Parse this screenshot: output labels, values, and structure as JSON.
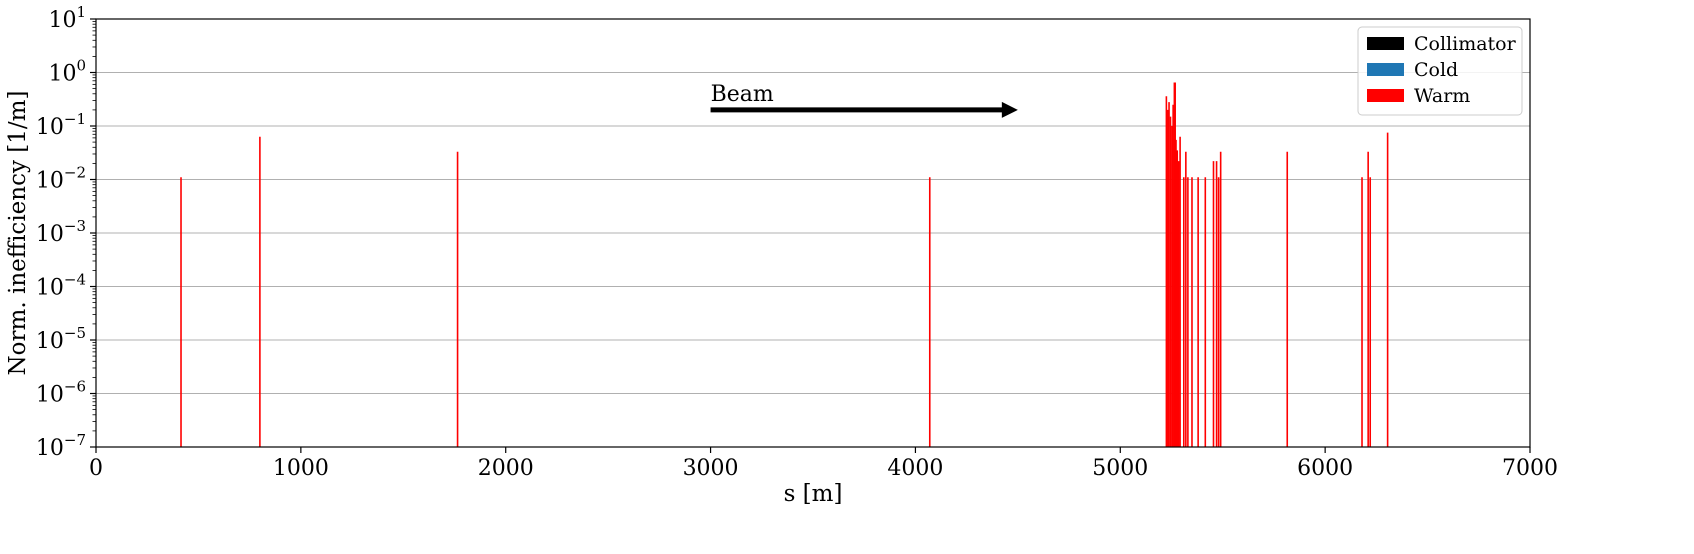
{
  "chart_data": {
    "type": "bar",
    "xlabel": "s [m]",
    "ylabel": "Norm. inefficiency [1/m]",
    "xlim": [
      0,
      7000
    ],
    "ylim": [
      1e-07,
      10
    ],
    "yscale": "log",
    "x_ticks": [
      0,
      1000,
      2000,
      3000,
      4000,
      5000,
      6000,
      7000
    ],
    "y_tick_exponents": [
      -7,
      -6,
      -5,
      -4,
      -3,
      -2,
      -1,
      0,
      1
    ],
    "y_tick_base": "10",
    "grid": "horizontal",
    "legend_position": "top-right",
    "legend": [
      {
        "label": "Collimator",
        "color": "#000000"
      },
      {
        "label": "Cold",
        "color": "#1f77b4"
      },
      {
        "label": "Warm",
        "color": "#ff0000"
      }
    ],
    "annotation": {
      "text": "Beam",
      "arrow_from": [
        3000,
        0.2
      ],
      "arrow_to": [
        4500,
        0.2
      ]
    },
    "series": [
      {
        "name": "Warm",
        "color": "#ff0000",
        "points": [
          {
            "s": 415,
            "value": 0.011
          },
          {
            "s": 800,
            "value": 0.063
          },
          {
            "s": 1765,
            "value": 0.033
          },
          {
            "s": 4070,
            "value": 0.011
          },
          {
            "s": 5225,
            "value": 0.36
          },
          {
            "s": 5232,
            "value": 0.2
          },
          {
            "s": 5238,
            "value": 0.28
          },
          {
            "s": 5245,
            "value": 0.15
          },
          {
            "s": 5252,
            "value": 0.1
          },
          {
            "s": 5258,
            "value": 0.25
          },
          {
            "s": 5264,
            "value": 0.65
          },
          {
            "s": 5268,
            "value": 0.65
          },
          {
            "s": 5272,
            "value": 0.055
          },
          {
            "s": 5278,
            "value": 0.035
          },
          {
            "s": 5285,
            "value": 0.022
          },
          {
            "s": 5292,
            "value": 0.063
          },
          {
            "s": 5310,
            "value": 0.011
          },
          {
            "s": 5320,
            "value": 0.033
          },
          {
            "s": 5330,
            "value": 0.011
          },
          {
            "s": 5350,
            "value": 0.011
          },
          {
            "s": 5380,
            "value": 0.011
          },
          {
            "s": 5415,
            "value": 0.011
          },
          {
            "s": 5455,
            "value": 0.022
          },
          {
            "s": 5470,
            "value": 0.022
          },
          {
            "s": 5480,
            "value": 0.011
          },
          {
            "s": 5490,
            "value": 0.033
          },
          {
            "s": 5815,
            "value": 0.033
          },
          {
            "s": 6180,
            "value": 0.011
          },
          {
            "s": 6210,
            "value": 0.033
          },
          {
            "s": 6220,
            "value": 0.011
          },
          {
            "s": 6305,
            "value": 0.075
          }
        ]
      }
    ]
  }
}
